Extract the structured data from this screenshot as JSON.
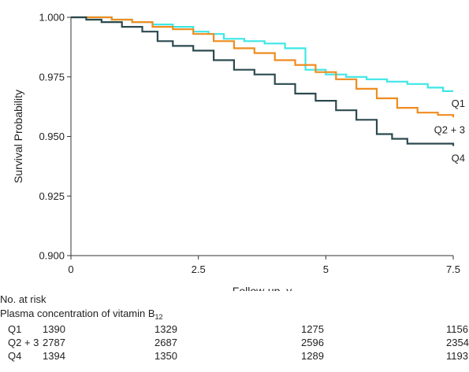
{
  "chart_data": {
    "type": "line",
    "step": true,
    "xlabel": "Follow-up, y",
    "ylabel": "Survival Probability",
    "xlim": [
      0,
      7.5
    ],
    "ylim": [
      0.9,
      1.0
    ],
    "x_ticks": [
      0,
      2.5,
      5,
      7.5
    ],
    "x_tick_labels": [
      "0",
      "2.5",
      "5",
      "7.5"
    ],
    "y_ticks": [
      0.9,
      0.925,
      0.95,
      0.975,
      1.0
    ],
    "y_tick_labels": [
      "0.900",
      "0.925",
      "0.950",
      "0.975",
      "1.000"
    ],
    "grid": false,
    "series": [
      {
        "name": "Q1",
        "color": "#3ee6e6",
        "x": [
          0,
          0.4,
          0.8,
          1.2,
          1.6,
          2.0,
          2.4,
          2.7,
          3.0,
          3.4,
          3.8,
          4.2,
          4.6,
          5.0,
          5.4,
          5.8,
          6.2,
          6.6,
          7.0,
          7.3,
          7.5
        ],
        "y": [
          1.0,
          1.0,
          0.999,
          0.998,
          0.997,
          0.996,
          0.994,
          0.993,
          0.991,
          0.99,
          0.989,
          0.987,
          0.978,
          0.976,
          0.975,
          0.974,
          0.973,
          0.972,
          0.9705,
          0.969,
          0.969
        ]
      },
      {
        "name": "Q2 + 3",
        "color": "#ef8c1f",
        "x": [
          0,
          0.4,
          0.8,
          1.2,
          1.6,
          2.0,
          2.4,
          2.8,
          3.2,
          3.6,
          4.0,
          4.4,
          4.8,
          5.2,
          5.6,
          6.0,
          6.4,
          6.8,
          7.2,
          7.5
        ],
        "y": [
          1.0,
          1.0,
          0.999,
          0.998,
          0.996,
          0.995,
          0.993,
          0.99,
          0.987,
          0.985,
          0.982,
          0.98,
          0.977,
          0.974,
          0.97,
          0.966,
          0.962,
          0.96,
          0.959,
          0.958
        ]
      },
      {
        "name": "Q4",
        "color": "#2b4a4f",
        "x": [
          0,
          0.3,
          0.6,
          1.0,
          1.4,
          1.7,
          2.0,
          2.4,
          2.8,
          3.2,
          3.6,
          4.0,
          4.4,
          4.8,
          5.2,
          5.6,
          6.0,
          6.3,
          6.6,
          7.0,
          7.5
        ],
        "y": [
          1.0,
          0.999,
          0.998,
          0.996,
          0.994,
          0.99,
          0.988,
          0.986,
          0.982,
          0.978,
          0.976,
          0.972,
          0.968,
          0.965,
          0.961,
          0.957,
          0.951,
          0.949,
          0.947,
          0.947,
          0.946
        ]
      }
    ]
  },
  "risk_table": {
    "title": "No. at risk",
    "subtitle_text": "Plasma concentration of vitamin B",
    "subtitle_subscript": "12",
    "columns_x": [
      0,
      2.5,
      5,
      7.5
    ],
    "rows": [
      {
        "group": "Q1",
        "values": [
          "1390",
          "1329",
          "1275",
          "1156"
        ]
      },
      {
        "group": "Q2 + 3",
        "values": [
          "2787",
          "2687",
          "2596",
          "2354"
        ]
      },
      {
        "group": "Q4",
        "values": [
          "1394",
          "1350",
          "1289",
          "1193"
        ]
      }
    ]
  }
}
